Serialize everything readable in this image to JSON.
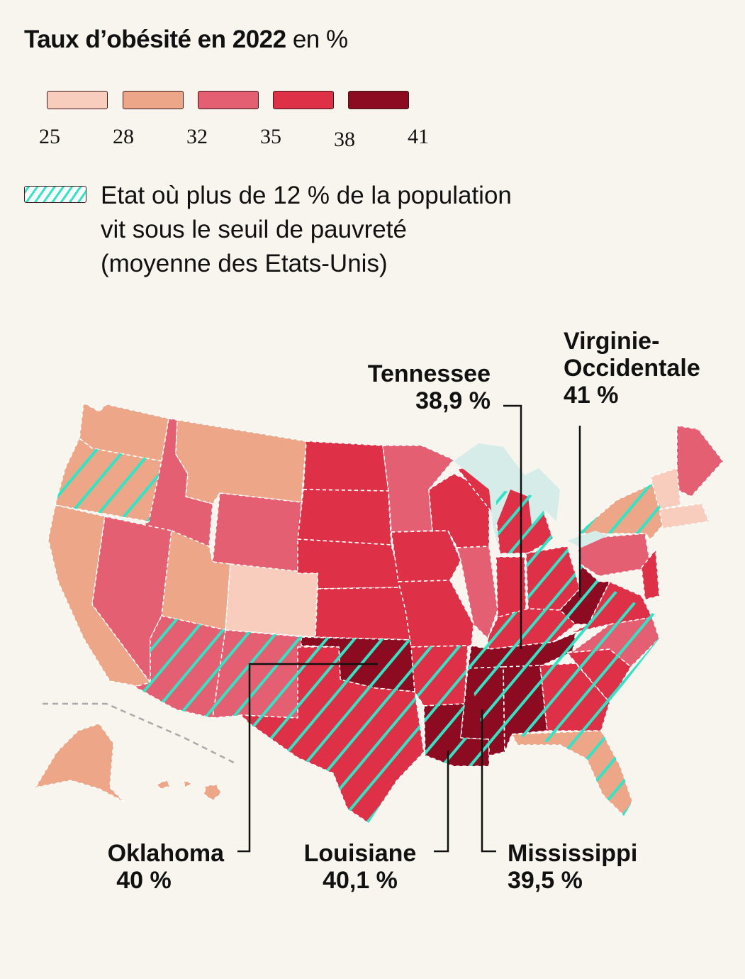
{
  "title": {
    "main": "Taux d’obésité en 2022",
    "unit": "en %"
  },
  "scale": {
    "ticks": [
      "25",
      "28",
      "32",
      "35",
      "38",
      "41"
    ],
    "colors": [
      "#f8cdbd",
      "#eea689",
      "#e45f71",
      "#de3147",
      "#8c0b21"
    ]
  },
  "hatch_legend": {
    "line1": "Etat où plus de 12 % de la population",
    "line2": "vit sous le seuil de pauvreté",
    "line3": "(moyenne des Etats-Unis)",
    "hatch_color": "#2ee6c5"
  },
  "callouts": {
    "tennessee": {
      "name": "Tennessee",
      "value": "38,9 %"
    },
    "west_virginia": {
      "name1": "Virginie-",
      "name2": "Occidentale",
      "value": "41 %"
    },
    "oklahoma": {
      "name": "Oklahoma",
      "value": "40 %"
    },
    "louisiana": {
      "name": "Louisiane",
      "value": "40,1 %"
    },
    "mississippi": {
      "name": "Mississippi",
      "value": "39,5 %"
    }
  }
}
